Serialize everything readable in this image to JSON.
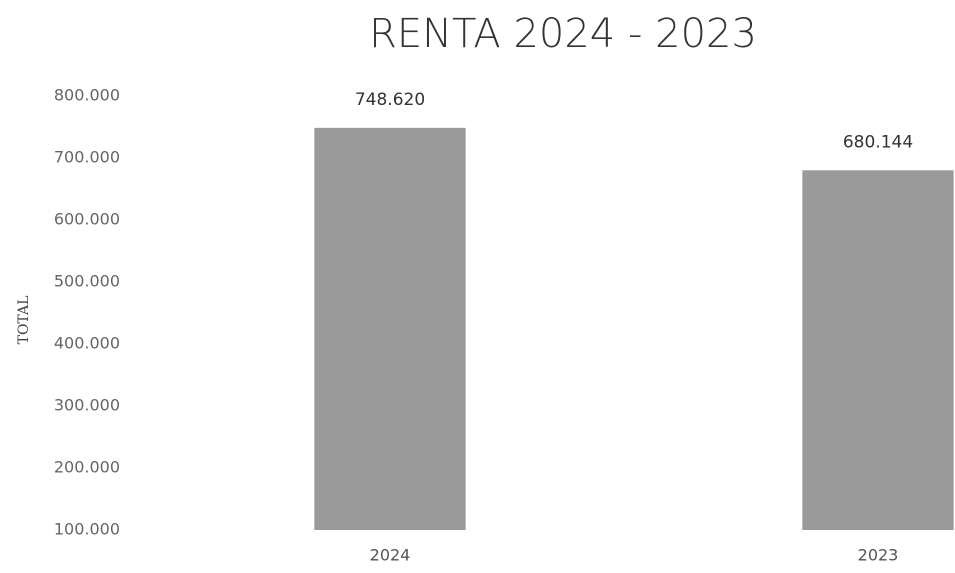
{
  "chart_data": {
    "type": "bar",
    "title": "RENTA 2024 - 2023",
    "y_label": "TOTAL",
    "categories": [
      "2024",
      "2023"
    ],
    "values": [
      748620,
      680144
    ],
    "value_labels": [
      "748.620",
      "680.144"
    ],
    "color": "#9a9a9a",
    "ylim": [
      100000,
      800000
    ],
    "yticks": [
      {
        "value": 100000,
        "label": "100.000"
      },
      {
        "value": 200000,
        "label": "200.000"
      },
      {
        "value": 300000,
        "label": "300.000"
      },
      {
        "value": 400000,
        "label": "400.000"
      },
      {
        "value": 500000,
        "label": "500.000"
      },
      {
        "value": 600000,
        "label": "600.000"
      },
      {
        "value": 700000,
        "label": "700.000"
      },
      {
        "value": 800000,
        "label": "800.000"
      }
    ],
    "grid": false
  }
}
